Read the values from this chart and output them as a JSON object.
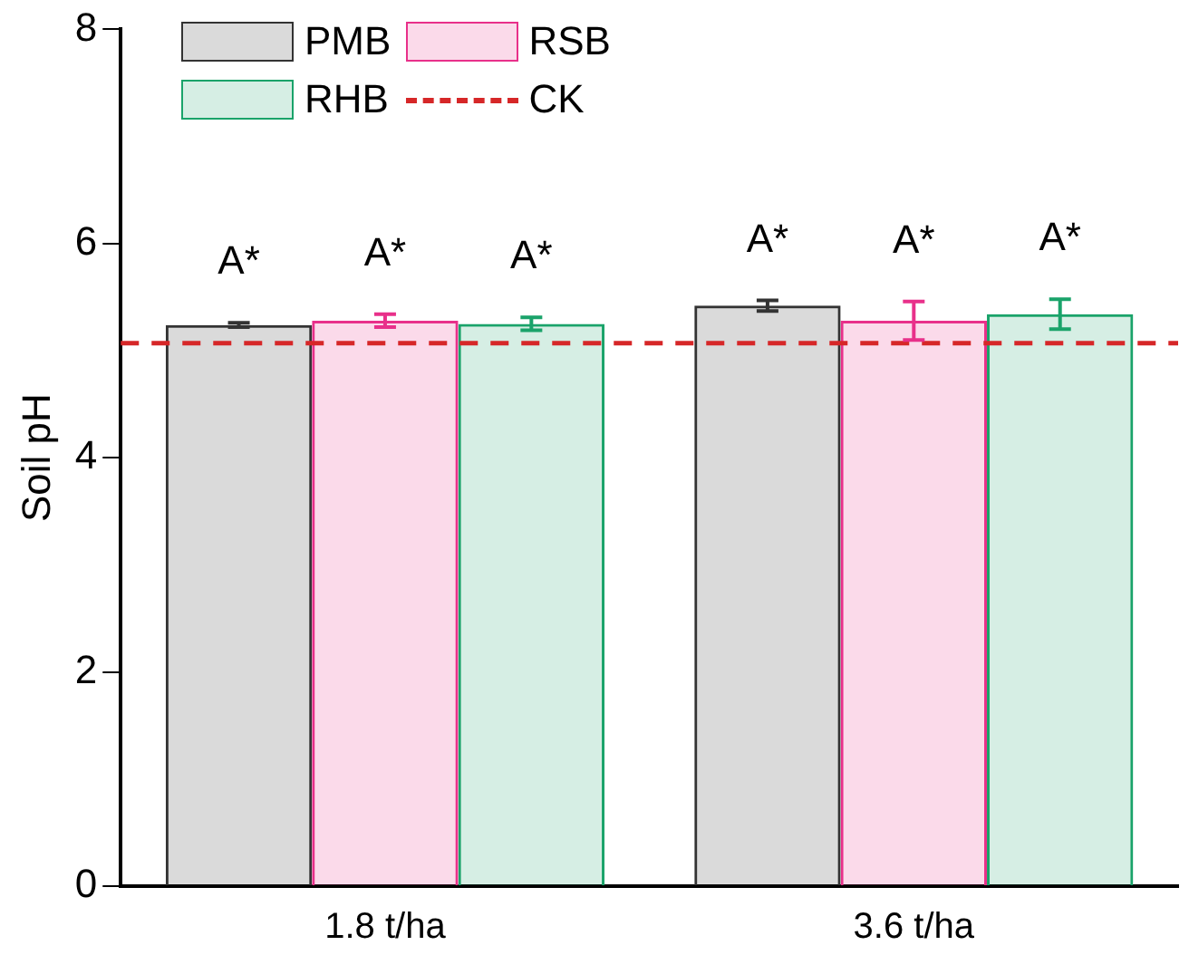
{
  "chart_data": {
    "type": "bar",
    "ylabel": "Soil pH",
    "categories": [
      "1.8 t/ha",
      "3.6 t/ha"
    ],
    "ylim": [
      0,
      8
    ],
    "yticks": [
      0,
      2,
      4,
      6,
      8
    ],
    "grid": false,
    "legend": "top left",
    "series": [
      {
        "name": "PMB",
        "color": "#333333",
        "values": [
          5.24,
          5.42
        ],
        "errors": [
          0.02,
          0.05
        ],
        "value_labels": [
          "A*",
          "A*"
        ]
      },
      {
        "name": "RSB",
        "color": "#e8308a",
        "values": [
          5.28,
          5.28
        ],
        "errors": [
          0.06,
          0.18
        ],
        "value_labels": [
          "A*",
          "A*"
        ]
      },
      {
        "name": "RHB",
        "color": "#1aa36a",
        "values": [
          5.25,
          5.34
        ],
        "errors": [
          0.06,
          0.14
        ],
        "value_labels": [
          "A*",
          "A*"
        ]
      }
    ],
    "ref_lines": [
      {
        "axis": "y",
        "value": 5.07,
        "label": "CK",
        "color": "#d62728",
        "line_style": "dashed"
      }
    ]
  }
}
